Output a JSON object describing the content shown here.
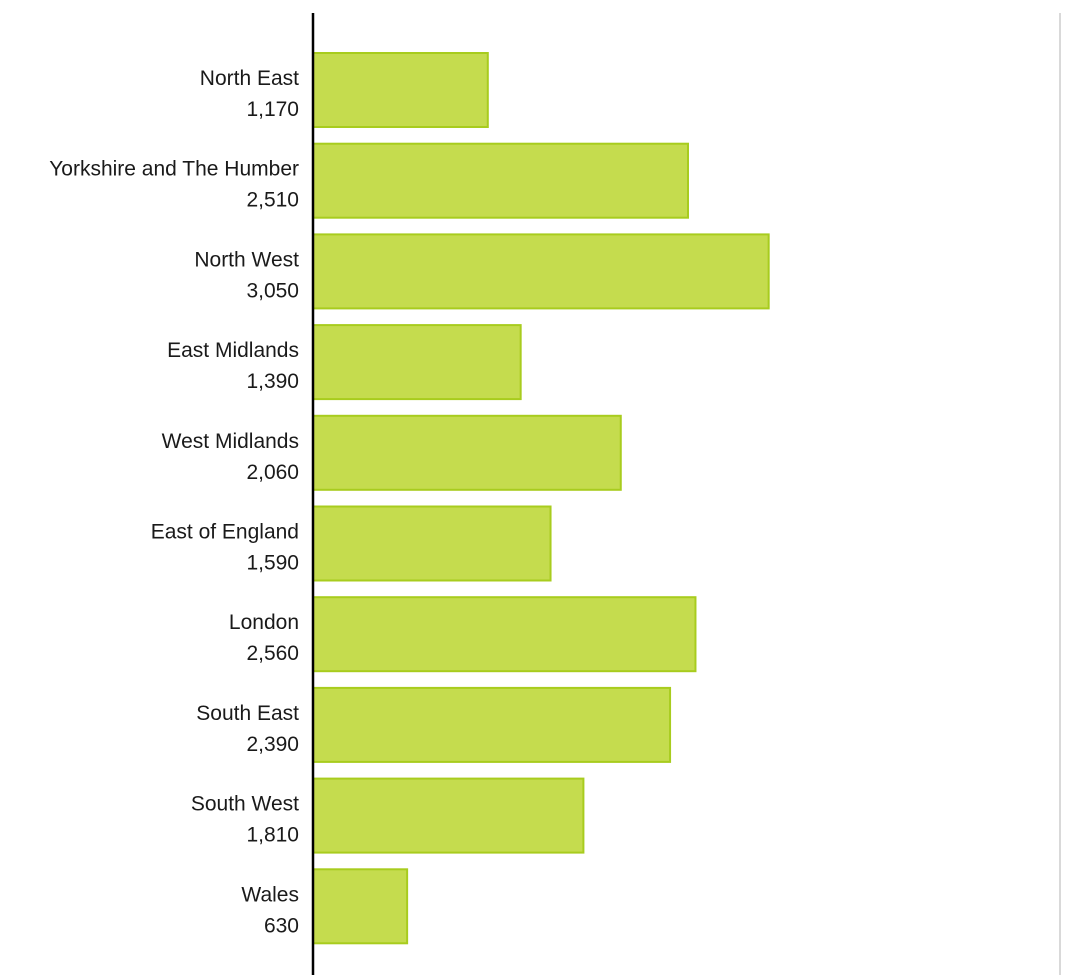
{
  "chart_data": {
    "type": "bar",
    "orientation": "horizontal",
    "categories": [
      "North East",
      "Yorkshire and The Humber",
      "North West",
      "East Midlands",
      "West Midlands",
      "East of England",
      "London",
      "South East",
      "South West",
      "Wales"
    ],
    "values": [
      1170,
      2510,
      3050,
      1390,
      2060,
      1590,
      2560,
      2390,
      1810,
      630
    ],
    "value_labels": [
      "1,170",
      "2,510",
      "3,050",
      "1,390",
      "2,060",
      "1,590",
      "2,560",
      "2,390",
      "1,810",
      "630"
    ],
    "xlim": [
      0,
      5000
    ],
    "title": "",
    "xlabel": "",
    "ylabel": "",
    "grid": false,
    "legend": "none",
    "colors": {
      "bar_fill": "#c5dc4e",
      "bar_stroke": "#a8cc1e",
      "axis": "#000000",
      "right_border": "#d9d9d9",
      "text": "#1a1a1a"
    }
  }
}
